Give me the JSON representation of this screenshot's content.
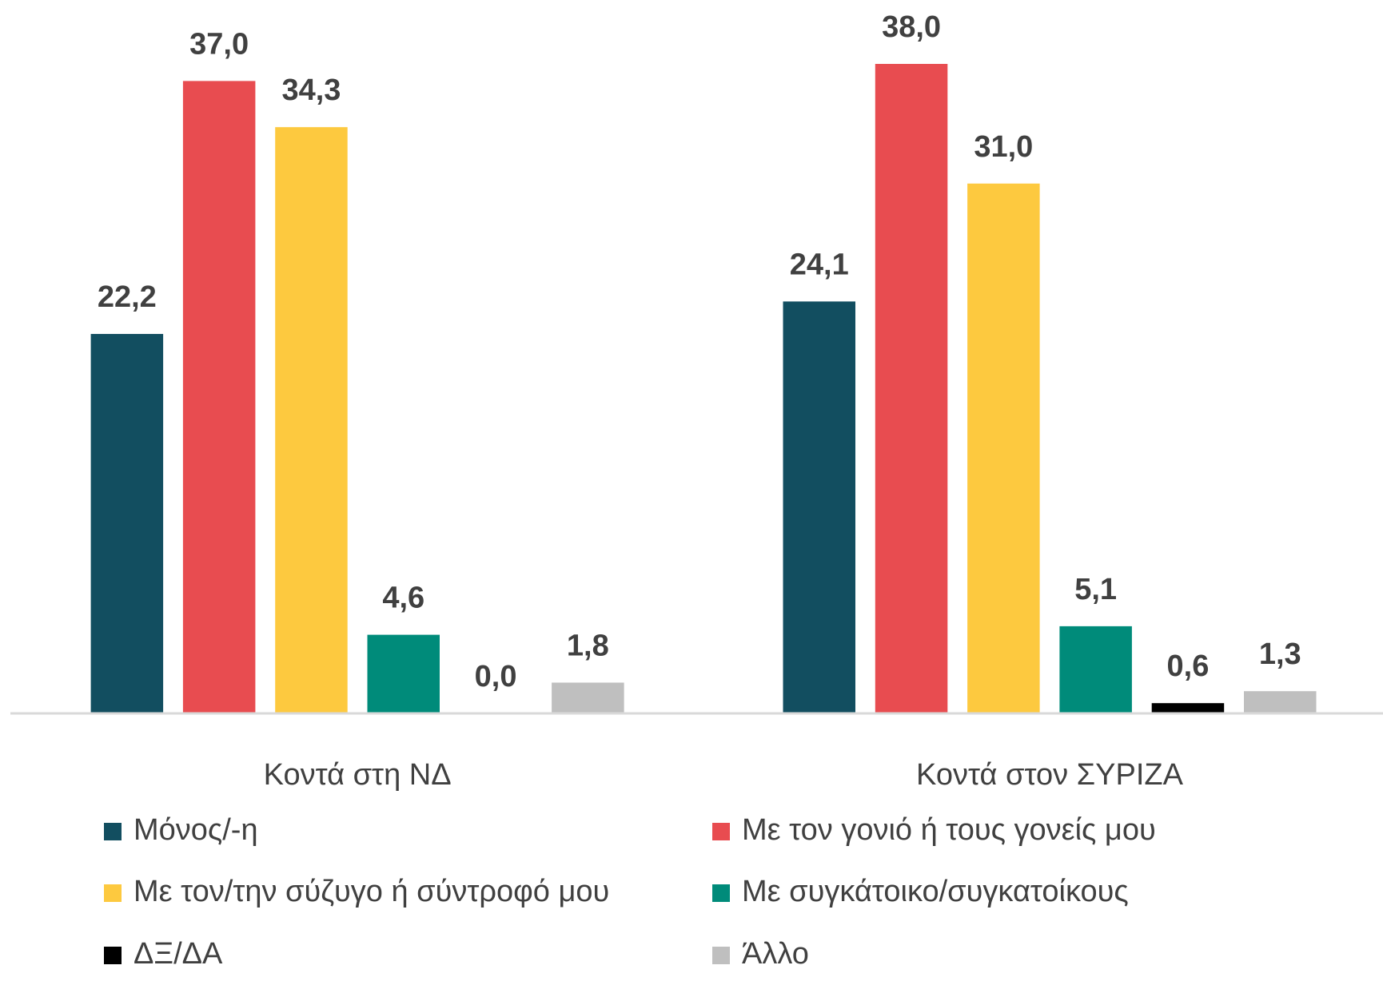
{
  "chart_data": {
    "type": "bar",
    "categories": [
      "Κοντά στη ΝΔ",
      "Κοντά στον ΣΥΡΙΖΑ"
    ],
    "series": [
      {
        "name": "Μόνος/-η",
        "color": "#124e60",
        "values": [
          22.2,
          24.1
        ],
        "value_labels": [
          "22,2",
          "24,1"
        ]
      },
      {
        "name": "Με τον γονιό ή τους γονείς μου",
        "color": "#e84c50",
        "values": [
          37.0,
          38.0
        ],
        "value_labels": [
          "37,0",
          "38,0"
        ]
      },
      {
        "name": "Με τον/την σύζυγο ή σύντροφό μου",
        "color": "#fdc93f",
        "values": [
          34.3,
          31.0
        ],
        "value_labels": [
          "34,3",
          "31,0"
        ]
      },
      {
        "name": "Με συγκάτοικο/συγκατοίκους",
        "color": "#008b7a",
        "values": [
          4.6,
          5.1
        ],
        "value_labels": [
          "4,6",
          "5,1"
        ]
      },
      {
        "name": "ΔΞ/ΔΑ",
        "color": "#000000",
        "values": [
          0.0,
          0.6
        ],
        "value_labels": [
          "0,0",
          "0,6"
        ]
      },
      {
        "name": "Άλλο",
        "color": "#bfbfbf",
        "values": [
          1.8,
          1.3
        ],
        "value_labels": [
          "1,8",
          "1,3"
        ]
      }
    ]
  }
}
